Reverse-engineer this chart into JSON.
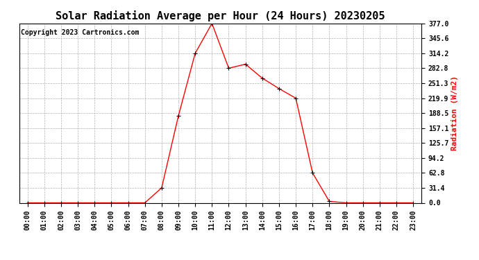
{
  "title": "Solar Radiation Average per Hour (24 Hours) 20230205",
  "copyright": "Copyright 2023 Cartronics.com",
  "ylabel": "Radiation (W/m2)",
  "hours": [
    "00:00",
    "01:00",
    "02:00",
    "03:00",
    "04:00",
    "05:00",
    "06:00",
    "07:00",
    "08:00",
    "09:00",
    "10:00",
    "11:00",
    "12:00",
    "13:00",
    "14:00",
    "15:00",
    "16:00",
    "17:00",
    "18:00",
    "19:00",
    "20:00",
    "21:00",
    "22:00",
    "23:00"
  ],
  "values": [
    0.0,
    0.0,
    0.0,
    0.0,
    0.0,
    0.0,
    0.0,
    0.0,
    31.4,
    183.0,
    314.2,
    377.0,
    282.8,
    291.3,
    262.0,
    240.0,
    219.9,
    62.8,
    3.0,
    0.0,
    0.0,
    0.0,
    0.0,
    0.0
  ],
  "ymin": 0.0,
  "ymax": 377.0,
  "yticks": [
    0.0,
    31.4,
    62.8,
    94.2,
    125.7,
    157.1,
    188.5,
    219.9,
    251.3,
    282.8,
    314.2,
    345.6,
    377.0
  ],
  "line_color": "#ff0000",
  "marker_color": "#000000",
  "title_color": "#000000",
  "ylabel_color": "#ff0000",
  "copyright_color": "#000000",
  "background_color": "#ffffff",
  "grid_color": "#b0b0b0",
  "title_fontsize": 11,
  "label_fontsize": 8,
  "tick_fontsize": 7,
  "copyright_fontsize": 7
}
